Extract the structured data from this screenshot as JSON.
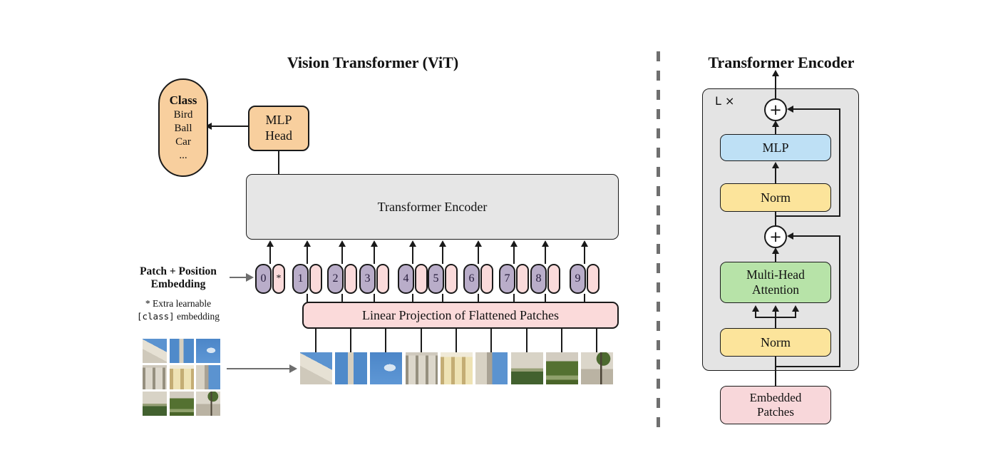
{
  "left": {
    "title": "Vision Transformer (ViT)",
    "class_pill": {
      "heading": "Class",
      "items": [
        "Bird",
        "Ball",
        "Car",
        "..."
      ]
    },
    "mlp_head": {
      "line1": "MLP",
      "line2": "Head"
    },
    "encoder_label": "Transformer Encoder",
    "embedding_label": {
      "line1": "Patch + Position",
      "line2": "Embedding"
    },
    "footnote": {
      "line1": "* Extra learnable",
      "code": "[class]",
      "rest": " embedding"
    },
    "linear_label": "Linear Projection of Flattened Patches",
    "tokens": [
      {
        "num": "0",
        "extra": "*"
      },
      {
        "num": "1",
        "extra": ""
      },
      {
        "num": "2",
        "extra": ""
      },
      {
        "num": "3",
        "extra": ""
      },
      {
        "num": "4",
        "extra": ""
      },
      {
        "num": "5",
        "extra": ""
      },
      {
        "num": "6",
        "extra": ""
      },
      {
        "num": "7",
        "extra": ""
      },
      {
        "num": "8",
        "extra": ""
      },
      {
        "num": "9",
        "extra": ""
      }
    ],
    "patches": [
      "cornice-and-sky",
      "spire-and-sky",
      "sky-with-cloud",
      "stone-facade",
      "yellow-palace-facade",
      "tower-and-sky",
      "facade-and-hedge",
      "garden-shrubs",
      "walkway-and-tree"
    ]
  },
  "right": {
    "title": "Transformer Encoder",
    "loop_label": "L ×",
    "plus": "+",
    "mlp_label": "MLP",
    "norm_top_label": "Norm",
    "mha": {
      "line1": "Multi-Head",
      "line2": "Attention"
    },
    "norm_bottom_label": "Norm",
    "embedded": {
      "line1": "Embedded",
      "line2": "Patches"
    }
  },
  "colors": {
    "line": "#1a1a1a",
    "orange": "#f8cf9e",
    "token-purple": "#b9adc9",
    "token-pink": "#fadada",
    "pink": "#fbdada",
    "blue": "#bee0f5",
    "yellow": "#fce49b",
    "green": "#b7e3a8",
    "box-gray": "#e6e6e6",
    "panel-gray": "#e4e4e4",
    "embedded-pink": "#f8d7da",
    "gray-arrow": "#6e6e6e"
  }
}
